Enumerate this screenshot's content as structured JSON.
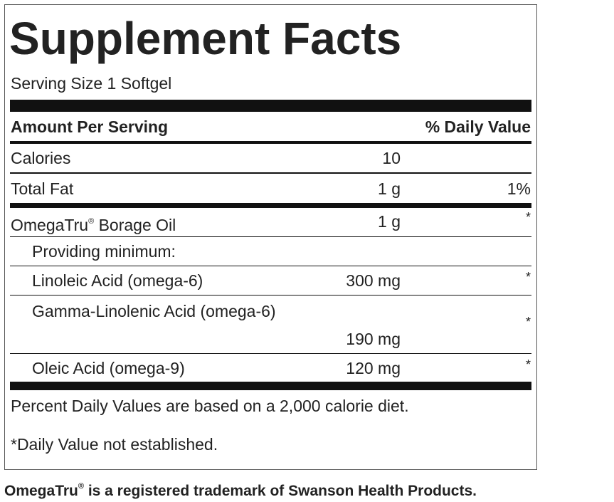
{
  "title": "Supplement Facts",
  "serving_size": "Serving Size 1 Softgel",
  "header": {
    "amount": "Amount Per Serving",
    "daily_value": "% Daily Value"
  },
  "rows": [
    {
      "name": "Calories",
      "amount": "10"
    },
    {
      "name": "Total Fat",
      "amount": "1 g",
      "daily_value": "1%"
    },
    {
      "name": "OmegaTru",
      "name_mark": "®",
      "name_rest": " Borage Oil",
      "amount": "1 g",
      "daily_value": "*"
    },
    {
      "name": "Providing minimum:"
    },
    {
      "name": "Linoleic Acid (omega-6)",
      "amount": "300 mg",
      "daily_value": "*"
    },
    {
      "name": "Gamma-Linolenic Acid (omega-6)",
      "amount": "190 mg",
      "daily_value": "*"
    },
    {
      "name": "Oleic Acid (omega-9)",
      "amount": "120 mg",
      "daily_value": "*"
    }
  ],
  "footnotes": [
    "Percent Daily Values are based on a 2,000 calorie diet.",
    "*Daily Value not established."
  ],
  "trademark": {
    "name": "OmegaTru",
    "mark": "®",
    "rest": " is a registered trademark of Swanson Health Products."
  }
}
